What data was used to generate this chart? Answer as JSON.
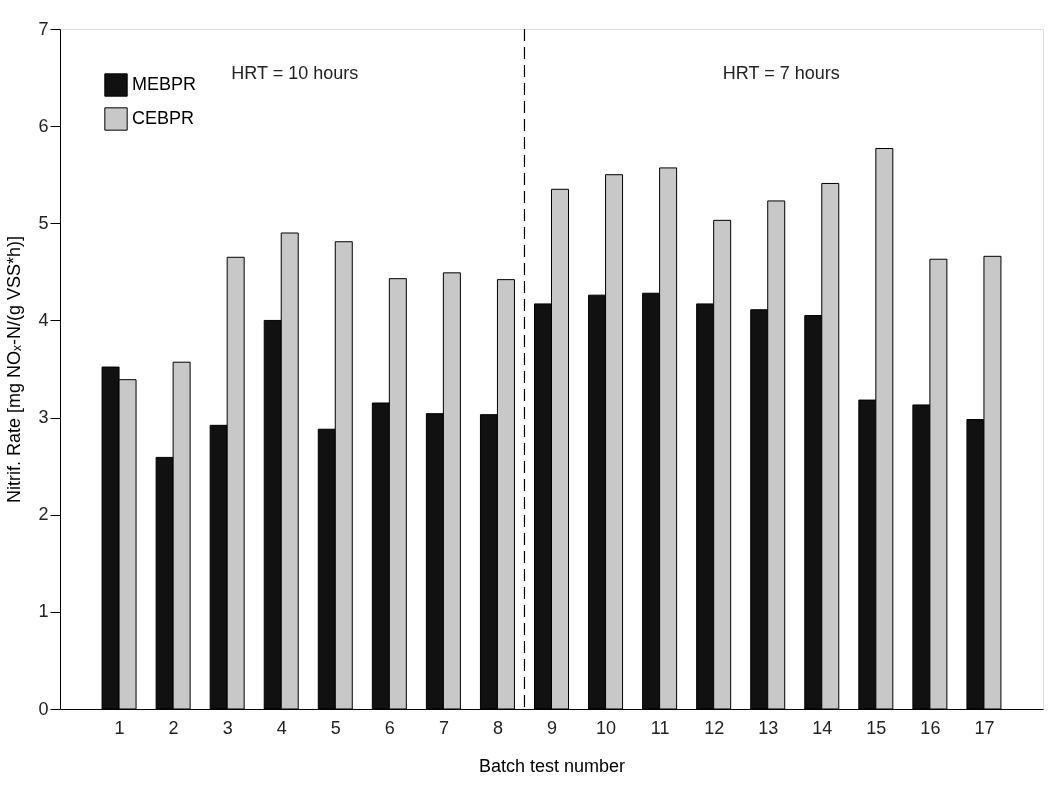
{
  "chart_data": {
    "type": "bar",
    "xlabel": "Batch test number",
    "ylabel": "Nitrif. Rate [mg NOₓ-N/(g VSS*h)]",
    "x": [
      1,
      2,
      3,
      4,
      5,
      6,
      7,
      8,
      9,
      10,
      11,
      12,
      13,
      14,
      15,
      16,
      17
    ],
    "xlim": [
      0,
      18
    ],
    "xticks": [
      1,
      2,
      3,
      4,
      5,
      6,
      7,
      8,
      9,
      10,
      11,
      12,
      13,
      14,
      15,
      16,
      17
    ],
    "ylim": [
      0,
      7
    ],
    "yticks": [
      0,
      1,
      2,
      3,
      4,
      5,
      6,
      7
    ],
    "series": [
      {
        "name": "MEBPR",
        "color": "#111111",
        "values": [
          3.52,
          2.59,
          2.92,
          4.0,
          2.88,
          3.15,
          3.04,
          3.03,
          4.17,
          4.26,
          4.28,
          4.17,
          4.11,
          4.05,
          3.18,
          3.13,
          2.98
        ]
      },
      {
        "name": "CEBPR",
        "color": "#c8c8c8",
        "values": [
          3.39,
          3.57,
          4.65,
          4.9,
          4.81,
          4.43,
          4.49,
          4.42,
          5.35,
          5.5,
          5.57,
          5.03,
          5.23,
          5.41,
          5.77,
          4.63,
          4.66
        ]
      }
    ],
    "ref_lines": [
      {
        "axis": "x",
        "value": 8.5,
        "line_style": "dashed"
      }
    ],
    "annotations": [
      "HRT = 10 hours",
      "HRT = 7 hours"
    ],
    "grid": false,
    "legend": "top left"
  }
}
